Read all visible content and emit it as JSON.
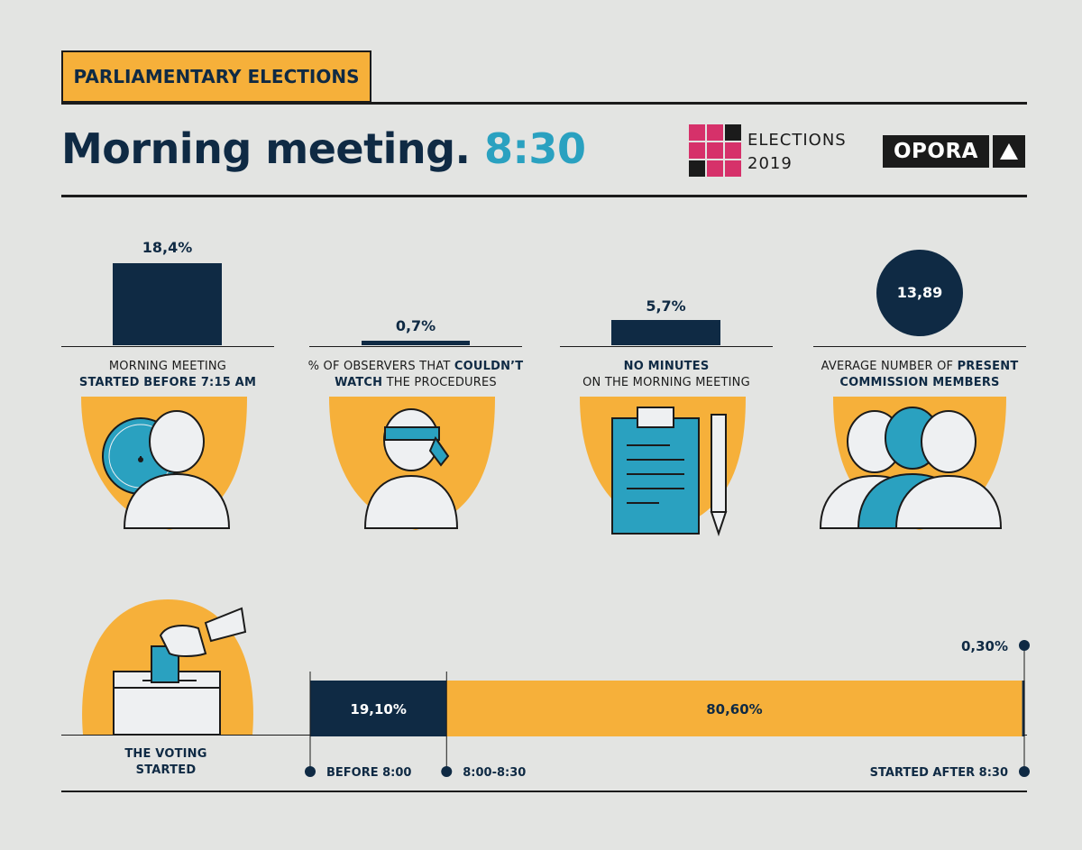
{
  "header": {
    "tag": "PARLIAMENTARY ELECTIONS",
    "title": "Morning meeting.",
    "time": "8:30",
    "elections_line1": "ELECTIONS",
    "elections_line2": "2019",
    "opora": "OPORA"
  },
  "colors": {
    "navy": "#0f2a44",
    "orange": "#f6b03a",
    "blue": "#2aa1c0",
    "pink": "#d6316a"
  },
  "chart_data": [
    {
      "type": "bar",
      "panels": [
        {
          "value_label": "18,4%",
          "value": 18.4,
          "label_plain": "MORNING MEETING",
          "label_bold": "STARTED BEFORE 7:15 AM",
          "icon": "clock-person-icon"
        },
        {
          "value_label": "0,7%",
          "value": 0.7,
          "label_plain_a": "% OF OBSERVERS THAT ",
          "label_bold_a": "COULDN’T",
          "label_bold_b": "WATCH",
          "label_plain_b": " THE PROCEDURES",
          "icon": "blindfolded-person-icon"
        },
        {
          "value_label": "5,7%",
          "value": 5.7,
          "label_bold": "NO MINUTES",
          "label_plain": "ON THE MORNING MEETING",
          "icon": "clipboard-pen-icon"
        },
        {
          "value_label": "13,89",
          "value": 13.89,
          "label_plain": "AVERAGE NUMBER OF ",
          "label_bold_a": "PRESENT",
          "label_bold_b": "COMMISSION MEMBERS",
          "icon": "group-of-people-icon"
        }
      ]
    },
    {
      "type": "bar",
      "stacked": true,
      "title": "THE VOTING STARTED",
      "title_line1": "THE VOTING",
      "title_line2": "STARTED",
      "segments": [
        {
          "name": "BEFORE 8:00",
          "value": 19.1,
          "label": "19,10%"
        },
        {
          "name": "8:00-8:30",
          "value": 80.6,
          "label": "80,60%"
        },
        {
          "name": "STARTED AFTER  8:30",
          "value": 0.3,
          "label": "0,30%"
        }
      ]
    }
  ]
}
